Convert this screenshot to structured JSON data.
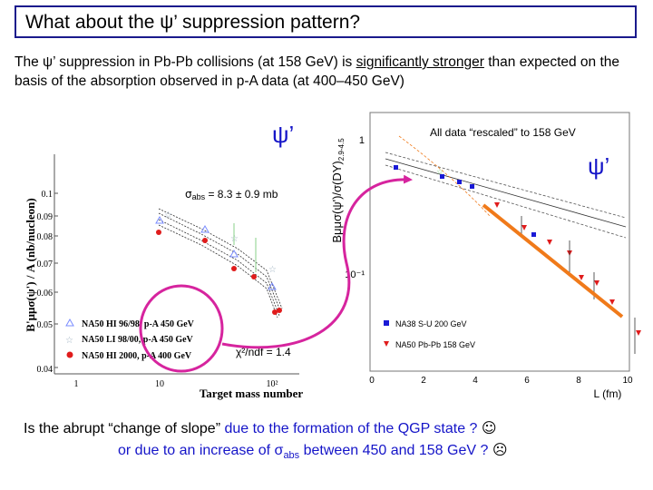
{
  "slide": {
    "title": "What about the ψ’ suppression pattern?",
    "intro": {
      "part1": "The ψ’ suppression in Pb-Pb collisions (at 158 GeV) is ",
      "underlined": "significantly stronger",
      "part2": " than expected on the basis of the absorption observed in p-A data (at 400–450 GeV)"
    },
    "footer": {
      "line1_prefix": "Is the abrupt “change of slope” ",
      "line1_blue": "due to the formation of the QGP state ?",
      "line1_icon": "☺",
      "line2_blue_pre": "or due to an increase of σ",
      "line2_sub": "abs",
      "line2_blue_post": " between 450 and 158 GeV ?",
      "line2_icon": "☹"
    }
  },
  "left_plot": {
    "ylabel": "B'μμσ(ψ') / A (nb/nucleon)",
    "xlabel": "Target mass number",
    "yticks": [
      "0.1",
      "0.09",
      "0.08",
      "0.07",
      "0.06",
      "0.05",
      "0.04"
    ],
    "xticks": [
      "1",
      "10",
      "10²"
    ],
    "psi_label": "ψ’",
    "sigma_label": "σabs = 8.3 ± 0.9 mb",
    "chi2_label": "χ²/ndf = 1.4",
    "legend": [
      {
        "label": "NA50 HI 96/98, p-A 450 GeV",
        "marker": "triangle",
        "color": "#7a8cff"
      },
      {
        "label": "NA50 LI 98/00, p-A 450 GeV",
        "marker": "star",
        "color": "#9fb2c2"
      },
      {
        "label": "NA50 HI 2000, p-A 400 GeV",
        "marker": "dot",
        "color": "#e01c1c"
      }
    ]
  },
  "right_plot": {
    "ylabel": "Bμμσ(ψ')/σ(DY)",
    "ylabel_sub": "2.9-4.5",
    "xlabel": "L (fm)",
    "note": "All data “rescaled” to 158 GeV",
    "psi_label": "ψ’",
    "yticks": [
      "1",
      "10⁻¹"
    ],
    "xticks": [
      "0",
      "2",
      "4",
      "6",
      "8",
      "10"
    ],
    "legend": [
      {
        "label": "NA38 S-U 200 GeV",
        "marker": "square",
        "color": "#1a1ad6"
      },
      {
        "label": "NA50 Pb-Pb 158 GeV",
        "marker": "triangle-down",
        "color": "#e01c1c"
      }
    ]
  },
  "colors": {
    "accent_magenta": "#d6249e",
    "fit_orange": "#f07a1a",
    "blue_text": "#1515c8"
  }
}
